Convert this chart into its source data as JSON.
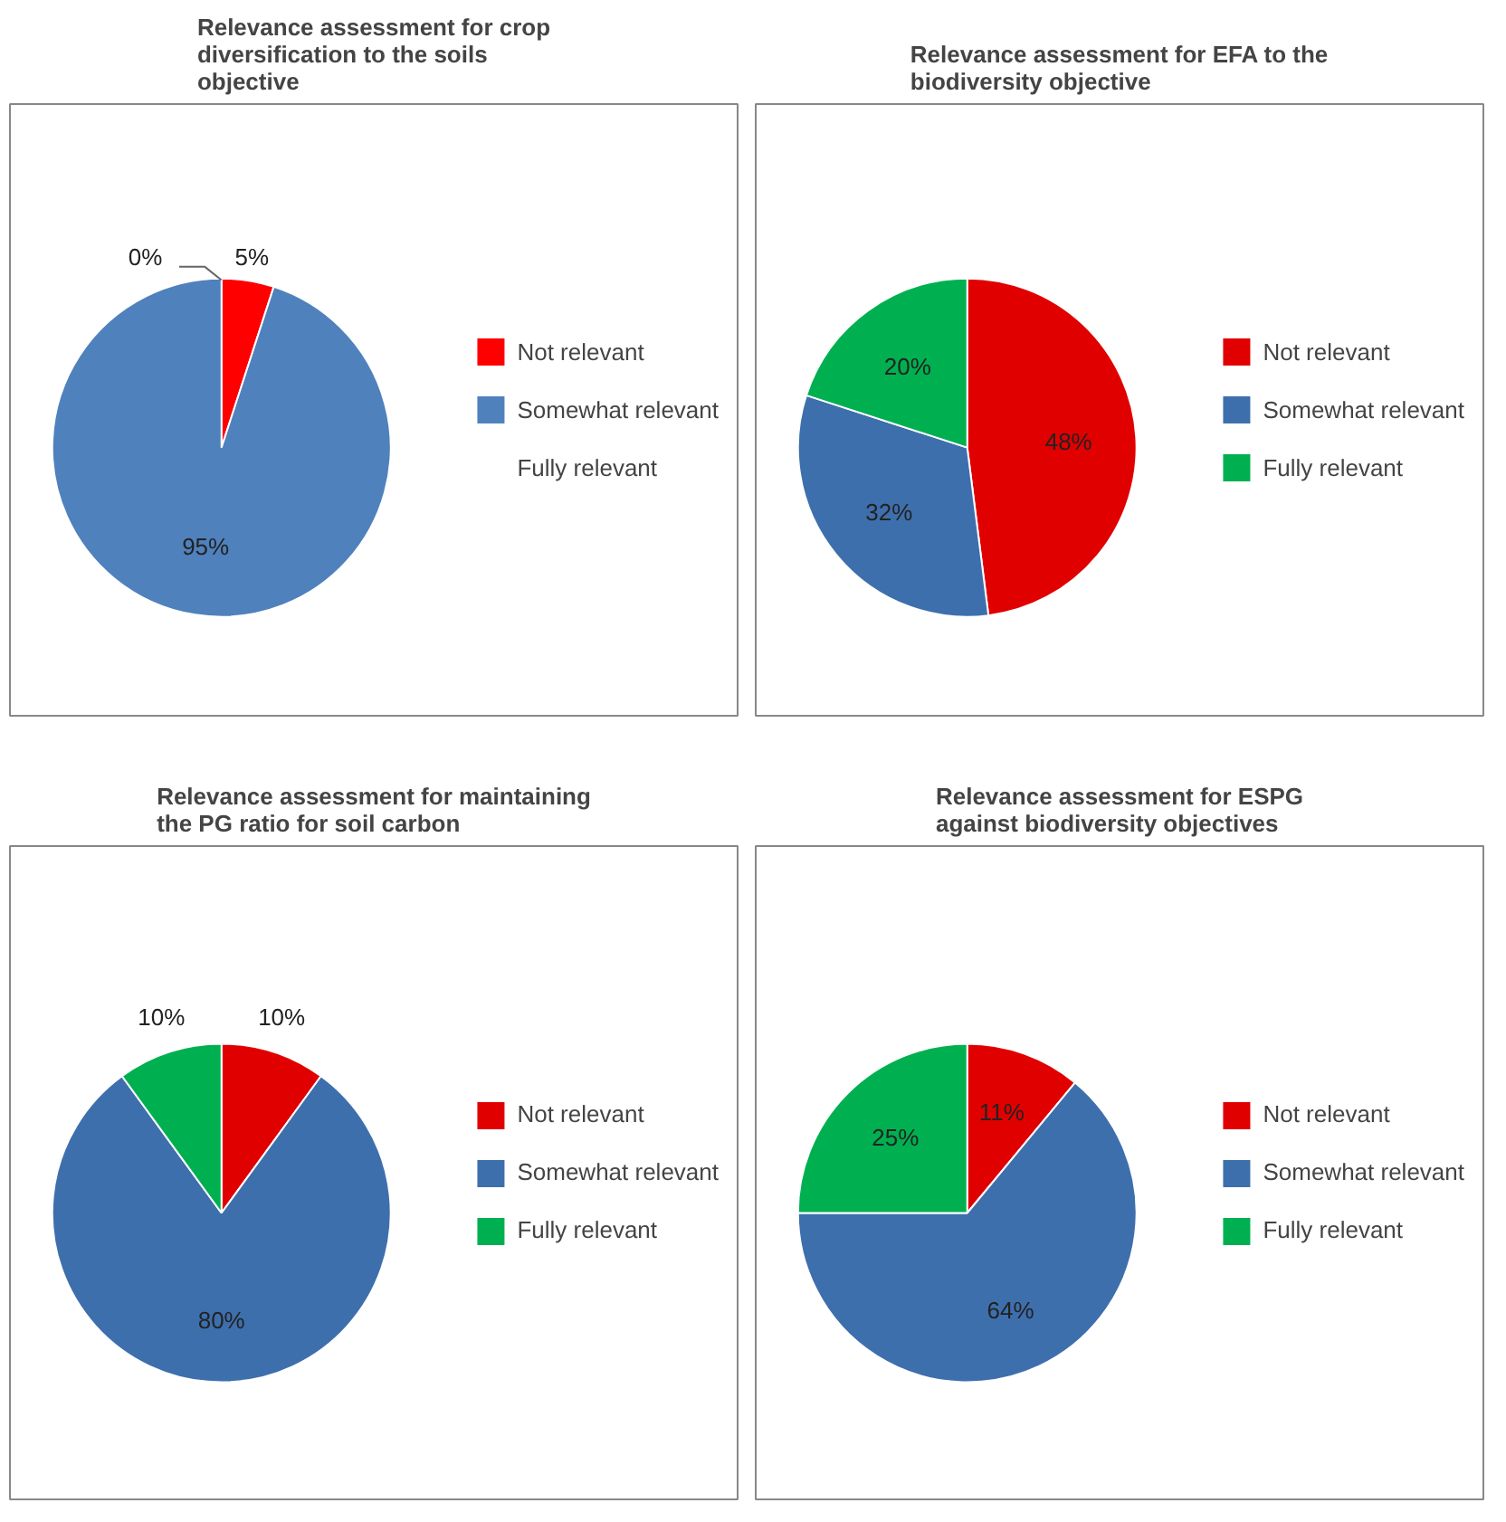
{
  "chart_data": [
    {
      "type": "pie",
      "title": "Relevance assessment for crop diversification to the soils objective",
      "categories": [
        "Not relevant",
        "Somewhat relevant",
        "Fully relevant"
      ],
      "values": [
        5,
        95,
        0
      ],
      "colors": [
        "#ff0000",
        "#4f81bd",
        "#9bbb59"
      ],
      "value_labels": [
        "5%",
        "95%",
        "0%"
      ],
      "legend": "right"
    },
    {
      "type": "pie",
      "title": "Relevance assessment for EFA to the biodiversity objective",
      "categories": [
        "Not relevant",
        "Somewhat relevant",
        "Fully relevant"
      ],
      "values": [
        48,
        32,
        20
      ],
      "colors": [
        "#e00000",
        "#3e6fad",
        "#00b050"
      ],
      "value_labels": [
        "48%",
        "32%",
        "20%"
      ],
      "legend": "right"
    },
    {
      "type": "pie",
      "title": "Relevance assessment for maintaining the PG ratio for soil carbon",
      "categories": [
        "Not relevant",
        "Somewhat relevant",
        "Fully relevant"
      ],
      "values": [
        10,
        80,
        10
      ],
      "colors": [
        "#e00000",
        "#3e6fad",
        "#00b050"
      ],
      "value_labels": [
        "10%",
        "80%",
        "10%"
      ],
      "legend": "right"
    },
    {
      "type": "pie",
      "title": "Relevance assessment for ESPG against biodiversity objectives",
      "categories": [
        "Not relevant",
        "Somewhat relevant",
        "Fully relevant"
      ],
      "values": [
        11,
        64,
        25
      ],
      "colors": [
        "#e00000",
        "#3e6fad",
        "#00b050"
      ],
      "value_labels": [
        "11%",
        "64%",
        "25%"
      ],
      "legend": "right"
    }
  ]
}
